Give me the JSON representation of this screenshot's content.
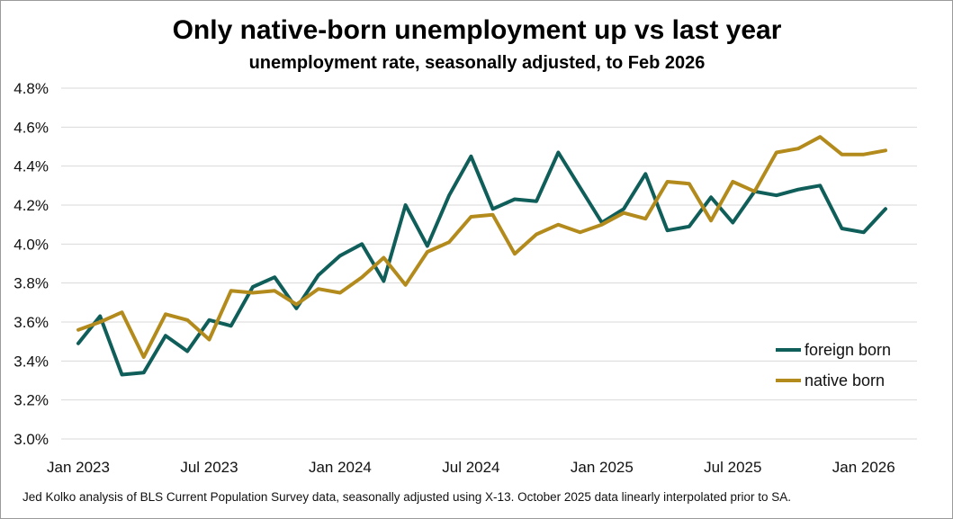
{
  "chart_data": {
    "type": "line",
    "title": "Only native-born unemployment up vs last year",
    "subtitle": "unemployment rate, seasonally adjusted, to Feb 2026",
    "footnote": "Jed Kolko analysis of BLS Current Population Survey data, seasonally adjusted using X-13. October 2025 data linearly interpolated prior to SA.",
    "xlabel": "",
    "ylabel": "",
    "ylim": [
      3.0,
      4.8
    ],
    "y_ticks": [
      3.0,
      3.2,
      3.4,
      3.6,
      3.8,
      4.0,
      4.2,
      4.4,
      4.6,
      4.8
    ],
    "y_tick_labels": [
      "3.0%",
      "3.2%",
      "3.4%",
      "3.6%",
      "3.8%",
      "4.0%",
      "4.2%",
      "4.4%",
      "4.6%",
      "4.8%"
    ],
    "x_tick_index": [
      0,
      6,
      12,
      18,
      24,
      30,
      36
    ],
    "x_tick_labels": [
      "Jan 2023",
      "Jul 2023",
      "Jan 2024",
      "Jul 2024",
      "Jan 2025",
      "Jul 2025",
      "Jan 2026"
    ],
    "grid": true,
    "legend_position": "bottom-right",
    "categories": [
      "Jan 2023",
      "Feb 2023",
      "Mar 2023",
      "Apr 2023",
      "May 2023",
      "Jun 2023",
      "Jul 2023",
      "Aug 2023",
      "Sep 2023",
      "Oct 2023",
      "Nov 2023",
      "Dec 2023",
      "Jan 2024",
      "Feb 2024",
      "Mar 2024",
      "Apr 2024",
      "May 2024",
      "Jun 2024",
      "Jul 2024",
      "Aug 2024",
      "Sep 2024",
      "Oct 2024",
      "Nov 2024",
      "Dec 2024",
      "Jan 2025",
      "Feb 2025",
      "Mar 2025",
      "Apr 2025",
      "May 2025",
      "Jun 2025",
      "Jul 2025",
      "Aug 2025",
      "Sep 2025",
      "Oct 2025",
      "Nov 2025",
      "Dec 2025",
      "Jan 2026",
      "Feb 2026"
    ],
    "series": [
      {
        "name": "foreign born",
        "color": "#0f5e5a",
        "values": [
          3.49,
          3.63,
          3.33,
          3.34,
          3.53,
          3.45,
          3.61,
          3.58,
          3.78,
          3.83,
          3.67,
          3.84,
          3.94,
          4.0,
          3.81,
          4.2,
          3.99,
          4.25,
          4.45,
          4.18,
          4.23,
          4.22,
          4.47,
          4.29,
          4.11,
          4.18,
          4.36,
          4.07,
          4.09,
          4.24,
          4.11,
          4.27,
          4.25,
          4.28,
          4.3,
          4.08,
          4.06,
          4.18
        ]
      },
      {
        "name": "native born",
        "color": "#b38b1d",
        "values": [
          3.56,
          3.6,
          3.65,
          3.42,
          3.64,
          3.61,
          3.51,
          3.76,
          3.75,
          3.76,
          3.69,
          3.77,
          3.75,
          3.83,
          3.93,
          3.79,
          3.96,
          4.01,
          4.14,
          4.15,
          3.95,
          4.05,
          4.1,
          4.06,
          4.1,
          4.16,
          4.13,
          4.32,
          4.31,
          4.12,
          4.32,
          4.27,
          4.47,
          4.49,
          4.55,
          4.46,
          4.46,
          4.48
        ]
      }
    ]
  }
}
